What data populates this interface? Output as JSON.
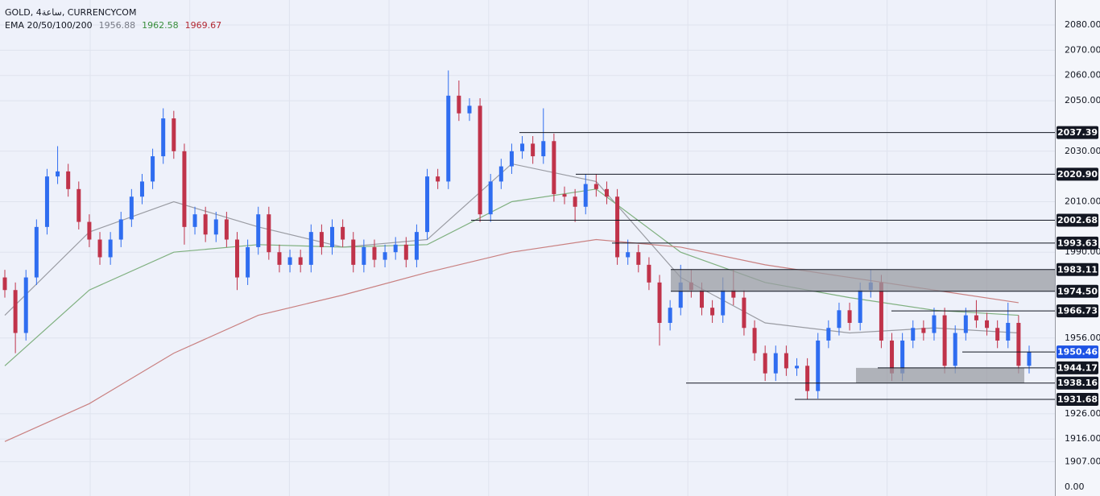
{
  "chart_data": {
    "type": "candlestick",
    "title": "GOLD, 4ساعة, CURRENCYCOM",
    "indicator": {
      "name": "EMA 20/50/100/200",
      "values": [
        1956.88,
        1962.58,
        1969.67
      ],
      "colors": [
        "#787b86",
        "#388e3c",
        "#b22833"
      ]
    },
    "ylim": [
      1899.8,
      2089.9
    ],
    "yticks": [
      {
        "value": 2080,
        "label": "2080.00"
      },
      {
        "value": 2070,
        "label": "2070.00"
      },
      {
        "value": 2060,
        "label": "2060.00"
      },
      {
        "value": 2050,
        "label": "2050.00"
      },
      {
        "value": 2030,
        "label": "2030.00"
      },
      {
        "value": 2010,
        "label": "2010.00"
      },
      {
        "value": 1990,
        "label": "1990.00"
      },
      {
        "value": 1956,
        "label": "1956.00"
      },
      {
        "value": 1926,
        "label": "1926.00"
      },
      {
        "value": 1916,
        "label": "1916.00"
      },
      {
        "value": 1907,
        "label": "1907.00"
      }
    ],
    "axis_bottom_label": "0.00",
    "grid": true,
    "up_color": "#2f6df0",
    "down_color": "#c0334a",
    "candles": {
      "open": [
        1980,
        1975,
        1958,
        1980,
        2000,
        2020,
        2022,
        2015,
        2002,
        1995,
        1988,
        1995,
        2003,
        2012,
        2018,
        2028,
        2043,
        2030,
        2000,
        2005,
        1997,
        2003,
        1995,
        1980,
        1992,
        2005,
        1990,
        1985,
        1988,
        1985,
        1998,
        1992,
        2000,
        1995,
        1985,
        1992,
        1987,
        1990,
        1993,
        1987,
        1998,
        2020,
        2018,
        2052,
        2045,
        2048,
        2005,
        2018,
        2024,
        2030,
        2033,
        2028,
        2034,
        2013,
        2012,
        2008,
        2017,
        2015,
        2012,
        1988,
        1990,
        1985,
        1978,
        1962,
        1968,
        1978,
        1975,
        1968,
        1965,
        1975,
        1972,
        1960,
        1950,
        1942,
        1950,
        1944,
        1945,
        1935,
        1955,
        1960,
        1967,
        1962,
        1975,
        1978,
        1955,
        1942,
        1955,
        1960,
        1958,
        1965,
        1945,
        1958,
        1965,
        1963,
        1960,
        1955,
        1962,
        1945
      ],
      "high": [
        1983,
        1978,
        1983,
        2003,
        2023,
        2032,
        2025,
        2018,
        2005,
        1998,
        1998,
        2006,
        2015,
        2021,
        2031,
        2047,
        2046,
        2033,
        2008,
        2008,
        2006,
        2006,
        1998,
        1995,
        2008,
        2008,
        1993,
        1991,
        1991,
        2001,
        2001,
        2003,
        2003,
        1998,
        1995,
        1995,
        1993,
        1996,
        1996,
        2001,
        2023,
        2023,
        2062,
        2058,
        2051,
        2051,
        2021,
        2027,
        2033,
        2036,
        2036,
        2047,
        2037,
        2016,
        2015,
        2021,
        2021,
        2018,
        2015,
        1995,
        1993,
        1988,
        1981,
        1971,
        1985,
        1983,
        1978,
        1971,
        1980,
        1983,
        1975,
        1963,
        1953,
        1953,
        1953,
        1948,
        1948,
        1958,
        1963,
        1970,
        1970,
        1978,
        1983,
        1981,
        1958,
        1958,
        1963,
        1963,
        1968,
        1968,
        1961,
        1968,
        1971,
        1966,
        1963,
        1970,
        1965,
        1953
      ],
      "low": [
        1972,
        1950,
        1955,
        1977,
        1997,
        2017,
        2012,
        1999,
        1992,
        1985,
        1985,
        1992,
        2000,
        2009,
        2015,
        2025,
        2027,
        1993,
        1997,
        1994,
        1994,
        1992,
        1975,
        1977,
        1989,
        1987,
        1982,
        1982,
        1982,
        1982,
        1989,
        1989,
        1992,
        1982,
        1982,
        1984,
        1984,
        1987,
        1984,
        1984,
        1995,
        2015,
        2015,
        2042,
        2042,
        2002,
        2002,
        2015,
        2021,
        2027,
        2025,
        2025,
        2010,
        2009,
        2002,
        2005,
        2012,
        2009,
        1985,
        1985,
        1982,
        1975,
        1953,
        1959,
        1965,
        1972,
        1965,
        1962,
        1962,
        1969,
        1957,
        1947,
        1939,
        1939,
        1941,
        1941,
        1931.68,
        1932,
        1952,
        1957,
        1959,
        1959,
        1972,
        1952,
        1939,
        1939,
        1952,
        1955,
        1955,
        1942,
        1942,
        1955,
        1960,
        1957,
        1952,
        1952,
        1942,
        1942
      ],
      "close": [
        1975,
        1958,
        1980,
        2000,
        2020,
        2022,
        2015,
        2002,
        1995,
        1988,
        1995,
        2003,
        2012,
        2018,
        2028,
        2043,
        2030,
        2000,
        2005,
        1997,
        2003,
        1995,
        1980,
        1992,
        2005,
        1990,
        1985,
        1988,
        1985,
        1998,
        1992,
        2000,
        1995,
        1985,
        1992,
        1987,
        1990,
        1993,
        1987,
        1998,
        2020,
        2018,
        2052,
        2045,
        2048,
        2005,
        2018,
        2024,
        2030,
        2033,
        2028,
        2034,
        2013,
        2012,
        2008,
        2017,
        2015,
        2012,
        1988,
        1990,
        1985,
        1978,
        1962,
        1968,
        1978,
        1975,
        1968,
        1965,
        1975,
        1972,
        1960,
        1950,
        1942,
        1950,
        1944,
        1945,
        1935,
        1955,
        1960,
        1967,
        1962,
        1975,
        1978,
        1955,
        1942,
        1955,
        1960,
        1958,
        1965,
        1945,
        1958,
        1965,
        1963,
        1960,
        1955,
        1962,
        1945,
        1950.46
      ]
    },
    "ema_x": [
      0,
      8,
      16,
      24,
      32,
      40,
      48,
      56,
      64,
      72,
      80,
      88,
      96
    ],
    "ema_lines": [
      {
        "color": "#9a9ca3",
        "values": [
          1965,
          1998,
          2010,
          2000,
          1992,
          1995,
          2025,
          2018,
          1980,
          1962,
          1958,
          1960,
          1958
        ]
      },
      {
        "color": "#7fb07f",
        "values": [
          1945,
          1975,
          1990,
          1993,
          1992,
          1993,
          2010,
          2015,
          1990,
          1978,
          1972,
          1967,
          1965
        ]
      },
      {
        "color": "#c98080",
        "values": [
          1915,
          1930,
          1950,
          1965,
          1973,
          1982,
          1990,
          1995,
          1992,
          1985,
          1980,
          1975,
          1970
        ]
      }
    ],
    "levels": [
      2037.39,
      {
        "value": 2020.9,
        "label": "2020.90"
      },
      2002.68,
      1993.63,
      1983.11,
      {
        "value": 1974.5,
        "label": "1974.50"
      },
      1966.73,
      1950.46,
      1944.17,
      1938.16,
      1931.68
    ],
    "current_level_index": 7,
    "current_color": "#1e53e5"
  }
}
